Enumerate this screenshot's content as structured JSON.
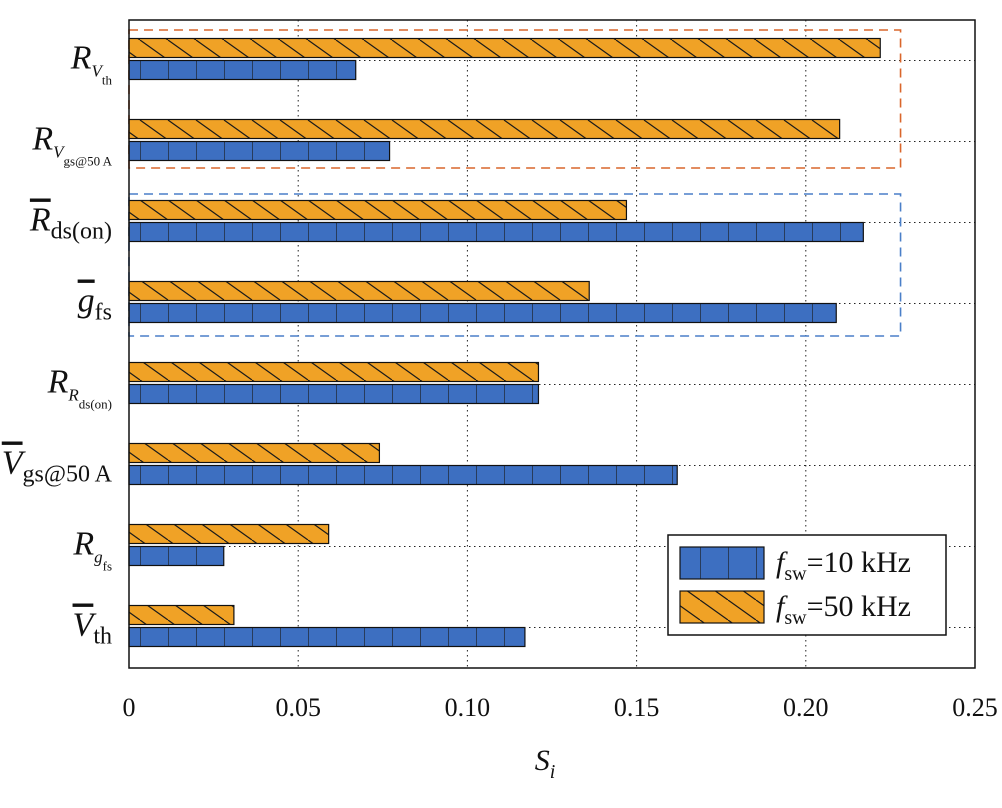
{
  "chart_data": {
    "type": "bar",
    "orientation": "horizontal",
    "categories": [
      {
        "main": "R",
        "sub": "V",
        "subsub": "th"
      },
      {
        "main": "R",
        "sub": "V",
        "subsub": "gs@50 A"
      },
      {
        "main": "R",
        "bar": true,
        "sub": "ds(on)"
      },
      {
        "main": "g",
        "bar": true,
        "sub": "fs"
      },
      {
        "main": "R",
        "sub": "R",
        "subsub": "ds(on)"
      },
      {
        "main": "V",
        "bar": true,
        "sub": "gs@50 A"
      },
      {
        "main": "R",
        "sub": "g",
        "subsub": "fs"
      },
      {
        "main": "V",
        "bar": true,
        "sub": "th"
      }
    ],
    "series": [
      {
        "name": "f_sw=10 kHz",
        "legend": {
          "main": "f",
          "sub": "sw",
          "rest": "=10 kHz"
        },
        "color": "#3d6fc1",
        "pattern": "vertical-lines",
        "values": [
          0.067,
          0.077,
          0.217,
          0.209,
          0.121,
          0.162,
          0.028,
          0.117
        ]
      },
      {
        "name": "f_sw=50 kHz",
        "legend": {
          "main": "f",
          "sub": "sw",
          "rest": "=50 kHz"
        },
        "color": "#f0a226",
        "pattern": "diagonal-lines",
        "values": [
          0.222,
          0.21,
          0.147,
          0.136,
          0.121,
          0.074,
          0.059,
          0.031
        ]
      }
    ],
    "xlabel": {
      "main": "S",
      "sub": "i"
    },
    "xlim": [
      0,
      0.25
    ],
    "xticks": [
      0,
      0.05,
      0.1,
      0.15,
      0.2,
      0.25
    ],
    "xtick_labels": [
      "0",
      "0.05",
      "0.10",
      "0.15",
      "0.20",
      "0.25"
    ],
    "grid": "dotted",
    "legend_position": "bottom-right",
    "highlight_boxes": [
      {
        "categories": [
          0,
          1
        ],
        "color": "#d9662b",
        "style": "dashed",
        "x_end": 0.228
      },
      {
        "categories": [
          2,
          3
        ],
        "color": "#4a7fc8",
        "style": "dashed",
        "x_end": 0.228
      }
    ]
  }
}
